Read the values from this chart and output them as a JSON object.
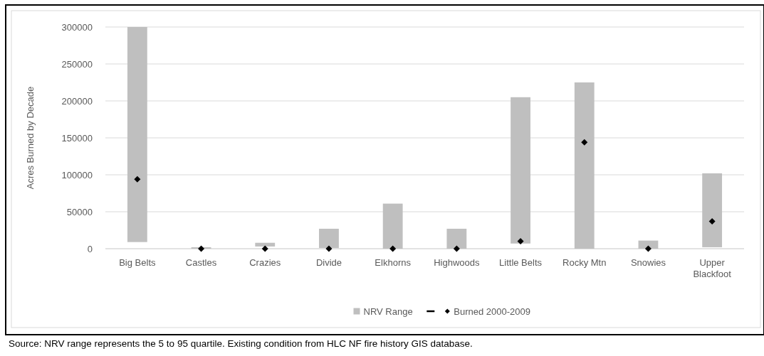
{
  "chart_data": {
    "type": "bar",
    "ylabel": "Acres Burned by Decade",
    "categories": [
      "Big Belts",
      "Castles",
      "Crazies",
      "Divide",
      "Elkhorns",
      "Highwoods",
      "Little Belts",
      "Rocky Mtn",
      "Snowies",
      "Upper Blackfoot"
    ],
    "series": [
      {
        "name": "NRV Range",
        "color": "#bfbfbf",
        "base": [
          9000,
          0,
          3000,
          1000,
          0,
          0,
          7000,
          0,
          0,
          2000
        ],
        "values": [
          291000,
          2000,
          5000,
          26000,
          61000,
          27000,
          198000,
          225000,
          11000,
          100000
        ]
      },
      {
        "name": "Burned 2000-2009",
        "type": "scatter",
        "marker": "diamond",
        "color": "#000000",
        "x": [
          "Big Belts",
          "Castles",
          "Crazies",
          "Divide",
          "Elkhorns",
          "Highwoods",
          "Little Belts",
          "Rocky Mtn",
          "Snowies",
          "Upper Blackfoot"
        ],
        "values": [
          94000,
          0,
          0,
          0,
          0,
          0,
          10000,
          144000,
          0,
          37000
        ]
      }
    ],
    "ylim": [
      0,
      300000
    ],
    "yticks": [
      0,
      50000,
      100000,
      150000,
      200000,
      250000,
      300000
    ],
    "grid": "y",
    "legend": "bottom",
    "annotations": [
      "Source: NRV range represents the 5 to 95 quartile. Existing condition from HLC NF fire history GIS database."
    ]
  }
}
